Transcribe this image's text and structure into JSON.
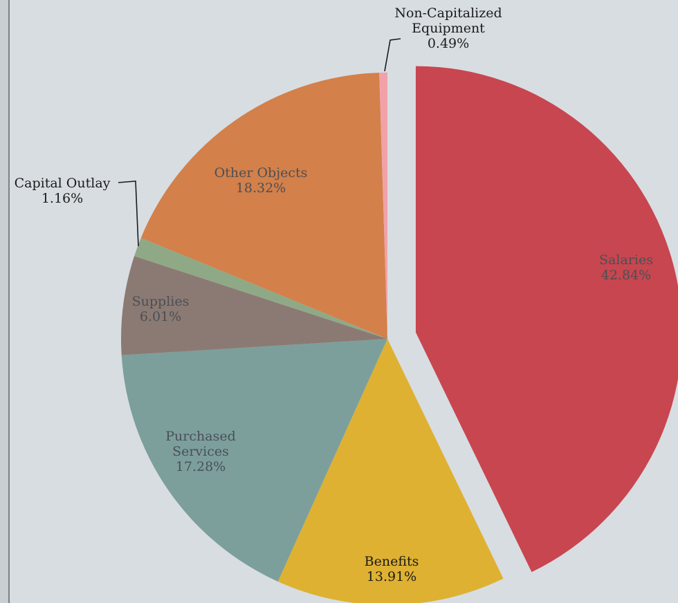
{
  "chart_data": {
    "type": "pie",
    "title": "",
    "slices": [
      {
        "name": "Salaries",
        "value": 42.84,
        "label": "42.84%",
        "color": "#c8464f",
        "exploded": true
      },
      {
        "name": "Benefits",
        "value": 13.91,
        "label": "13.91%",
        "color": "#deb132",
        "exploded": false
      },
      {
        "name": "Purchased Services",
        "value": 17.28,
        "label": "17.28%",
        "color": "#7c9f9c",
        "exploded": false
      },
      {
        "name": "Supplies",
        "value": 6.01,
        "label": "6.01%",
        "color": "#8b7a73",
        "exploded": false
      },
      {
        "name": "Capital Outlay",
        "value": 1.16,
        "label": "1.16%",
        "color": "#8fa987",
        "exploded": false
      },
      {
        "name": "Other Objects",
        "value": 18.32,
        "label": "18.32%",
        "color": "#d3804a",
        "exploded": false
      },
      {
        "name": "Non-Capitalized Equipment",
        "value": 0.49,
        "label": "0.49%",
        "color": "#f0a2a8",
        "exploded": false
      }
    ],
    "legend": "none"
  }
}
